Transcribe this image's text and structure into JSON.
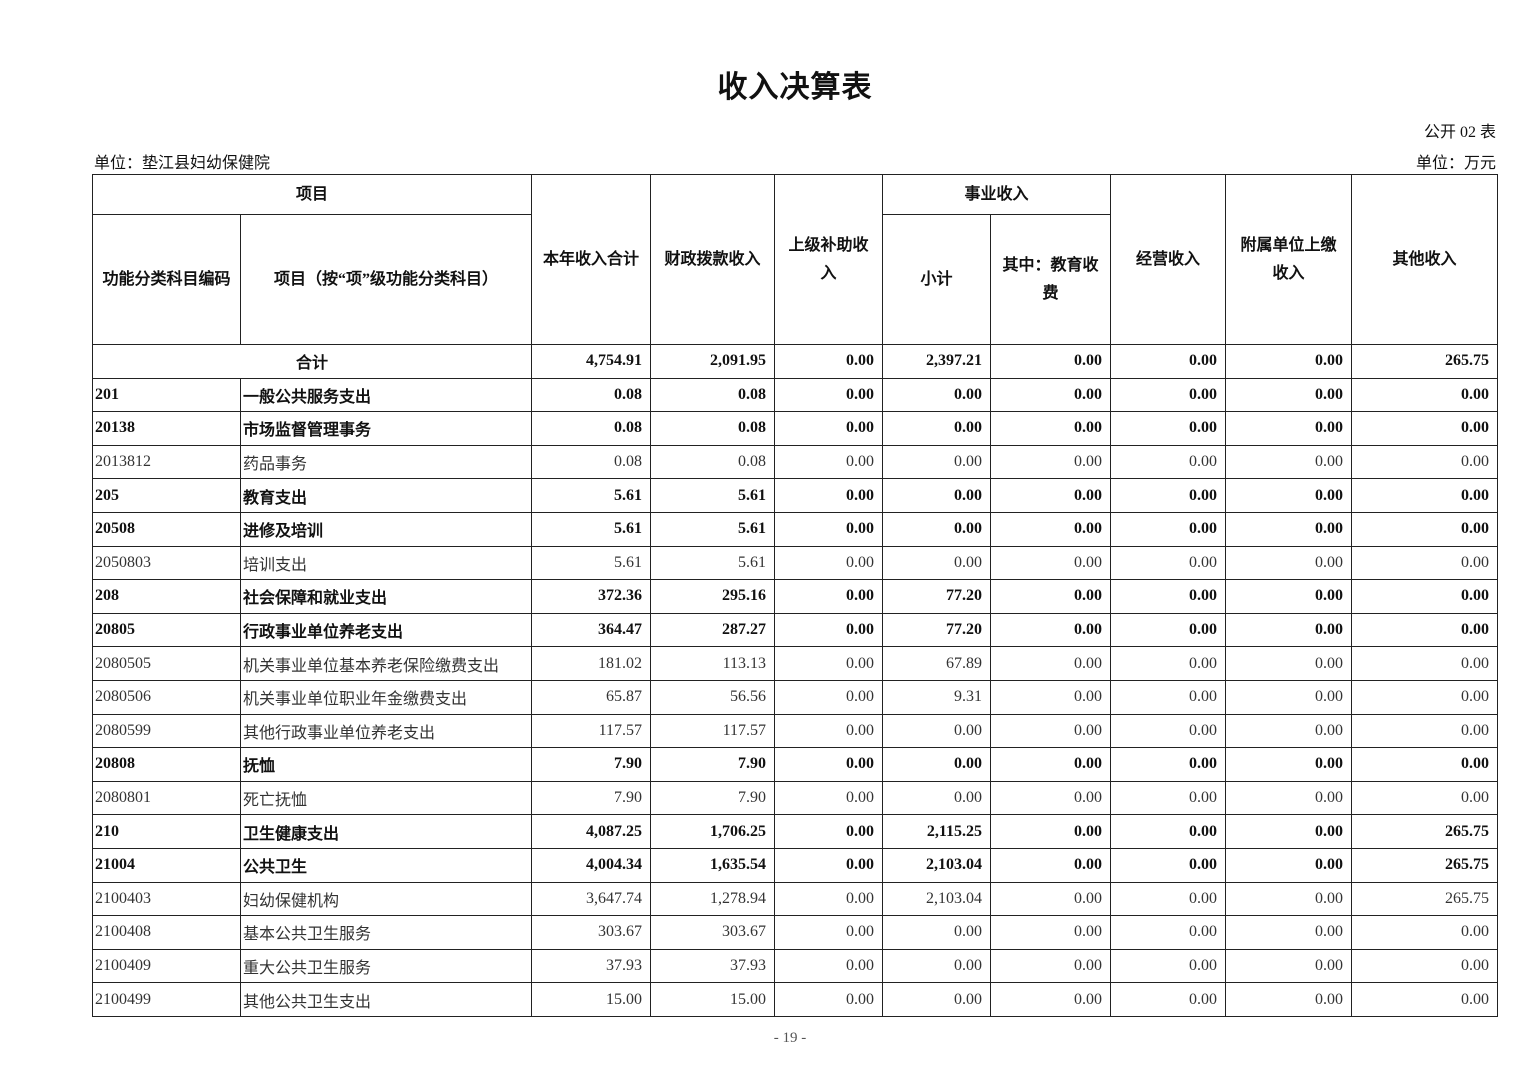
{
  "title": "收入决算表",
  "form_no": "公开 02 表",
  "unit_org": "单位：垫江县妇幼保健院",
  "unit_currency": "单位：万元",
  "headers": {
    "project": "项目",
    "code": "功能分类科目编码",
    "name": "项目（按“项”级功能分类科目）",
    "total": "本年收入合计",
    "fiscal": "财政拨款收入",
    "superior": "上级补助收入",
    "business": "事业收入",
    "subtotal": "小计",
    "education": "其中：教育收费",
    "operating": "经营收入",
    "affiliated": "附属单位上缴收入",
    "other": "其他收入"
  },
  "total_row": {
    "label": "合计",
    "values": [
      "4,754.91",
      "2,091.95",
      "0.00",
      "2,397.21",
      "0.00",
      "0.00",
      "0.00",
      "265.75"
    ]
  },
  "rows": [
    {
      "code": "201",
      "name": "一般公共服务支出",
      "bold": true,
      "values": [
        "0.08",
        "0.08",
        "0.00",
        "0.00",
        "0.00",
        "0.00",
        "0.00",
        "0.00"
      ]
    },
    {
      "code": "20138",
      "name": "市场监督管理事务",
      "bold": true,
      "values": [
        "0.08",
        "0.08",
        "0.00",
        "0.00",
        "0.00",
        "0.00",
        "0.00",
        "0.00"
      ]
    },
    {
      "code": "2013812",
      "name": "药品事务",
      "bold": false,
      "values": [
        "0.08",
        "0.08",
        "0.00",
        "0.00",
        "0.00",
        "0.00",
        "0.00",
        "0.00"
      ]
    },
    {
      "code": "205",
      "name": "教育支出",
      "bold": true,
      "values": [
        "5.61",
        "5.61",
        "0.00",
        "0.00",
        "0.00",
        "0.00",
        "0.00",
        "0.00"
      ]
    },
    {
      "code": "20508",
      "name": "进修及培训",
      "bold": true,
      "values": [
        "5.61",
        "5.61",
        "0.00",
        "0.00",
        "0.00",
        "0.00",
        "0.00",
        "0.00"
      ]
    },
    {
      "code": "2050803",
      "name": "培训支出",
      "bold": false,
      "values": [
        "5.61",
        "5.61",
        "0.00",
        "0.00",
        "0.00",
        "0.00",
        "0.00",
        "0.00"
      ]
    },
    {
      "code": "208",
      "name": "社会保障和就业支出",
      "bold": true,
      "values": [
        "372.36",
        "295.16",
        "0.00",
        "77.20",
        "0.00",
        "0.00",
        "0.00",
        "0.00"
      ]
    },
    {
      "code": "20805",
      "name": "行政事业单位养老支出",
      "bold": true,
      "values": [
        "364.47",
        "287.27",
        "0.00",
        "77.20",
        "0.00",
        "0.00",
        "0.00",
        "0.00"
      ]
    },
    {
      "code": "2080505",
      "name": "机关事业单位基本养老保险缴费支出",
      "bold": false,
      "values": [
        "181.02",
        "113.13",
        "0.00",
        "67.89",
        "0.00",
        "0.00",
        "0.00",
        "0.00"
      ]
    },
    {
      "code": "2080506",
      "name": "机关事业单位职业年金缴费支出",
      "bold": false,
      "values": [
        "65.87",
        "56.56",
        "0.00",
        "9.31",
        "0.00",
        "0.00",
        "0.00",
        "0.00"
      ]
    },
    {
      "code": "2080599",
      "name": "其他行政事业单位养老支出",
      "bold": false,
      "values": [
        "117.57",
        "117.57",
        "0.00",
        "0.00",
        "0.00",
        "0.00",
        "0.00",
        "0.00"
      ]
    },
    {
      "code": "20808",
      "name": "抚恤",
      "bold": true,
      "values": [
        "7.90",
        "7.90",
        "0.00",
        "0.00",
        "0.00",
        "0.00",
        "0.00",
        "0.00"
      ]
    },
    {
      "code": "2080801",
      "name": "死亡抚恤",
      "bold": false,
      "values": [
        "7.90",
        "7.90",
        "0.00",
        "0.00",
        "0.00",
        "0.00",
        "0.00",
        "0.00"
      ]
    },
    {
      "code": "210",
      "name": "卫生健康支出",
      "bold": true,
      "values": [
        "4,087.25",
        "1,706.25",
        "0.00",
        "2,115.25",
        "0.00",
        "0.00",
        "0.00",
        "265.75"
      ]
    },
    {
      "code": "21004",
      "name": "公共卫生",
      "bold": true,
      "values": [
        "4,004.34",
        "1,635.54",
        "0.00",
        "2,103.04",
        "0.00",
        "0.00",
        "0.00",
        "265.75"
      ]
    },
    {
      "code": "2100403",
      "name": "妇幼保健机构",
      "bold": false,
      "values": [
        "3,647.74",
        "1,278.94",
        "0.00",
        "2,103.04",
        "0.00",
        "0.00",
        "0.00",
        "265.75"
      ]
    },
    {
      "code": "2100408",
      "name": "基本公共卫生服务",
      "bold": false,
      "values": [
        "303.67",
        "303.67",
        "0.00",
        "0.00",
        "0.00",
        "0.00",
        "0.00",
        "0.00"
      ]
    },
    {
      "code": "2100409",
      "name": "重大公共卫生服务",
      "bold": false,
      "values": [
        "37.93",
        "37.93",
        "0.00",
        "0.00",
        "0.00",
        "0.00",
        "0.00",
        "0.00"
      ]
    },
    {
      "code": "2100499",
      "name": "其他公共卫生支出",
      "bold": false,
      "values": [
        "15.00",
        "15.00",
        "0.00",
        "0.00",
        "0.00",
        "0.00",
        "0.00",
        "0.00"
      ]
    }
  ],
  "page_number": "- 19 -"
}
